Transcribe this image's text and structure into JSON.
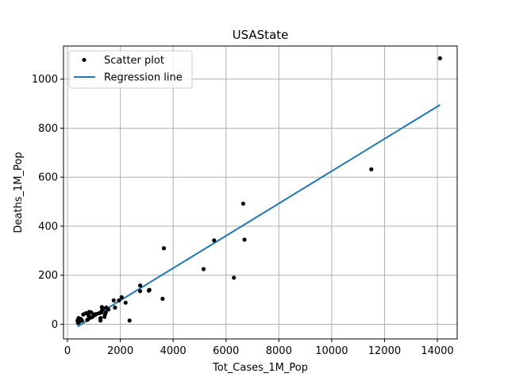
{
  "chart_data": {
    "type": "scatter",
    "title": "USAState",
    "xlabel": "Tot_Cases_1M_Pop",
    "ylabel": "Deaths_1M_Pop",
    "xlim": [
      -150,
      14750
    ],
    "ylim": [
      -60,
      1135
    ],
    "xticks": [
      0,
      2000,
      4000,
      6000,
      8000,
      10000,
      12000,
      14000
    ],
    "yticks": [
      0,
      200,
      400,
      600,
      800,
      1000
    ],
    "grid": true,
    "legend_position": "top-left",
    "series": [
      {
        "name": "Scatter plot",
        "kind": "scatter",
        "color": "#000000",
        "points": [
          [
            14100,
            1085
          ],
          [
            11500,
            632
          ],
          [
            6650,
            492
          ],
          [
            6700,
            345
          ],
          [
            5550,
            342
          ],
          [
            6300,
            190
          ],
          [
            5150,
            225
          ],
          [
            3650,
            310
          ],
          [
            3600,
            104
          ],
          [
            3100,
            140
          ],
          [
            3080,
            137
          ],
          [
            2750,
            158
          ],
          [
            2750,
            135
          ],
          [
            2350,
            15
          ],
          [
            2200,
            88
          ],
          [
            2050,
            110
          ],
          [
            1950,
            97
          ],
          [
            1750,
            97
          ],
          [
            1800,
            68
          ],
          [
            1470,
            68
          ],
          [
            1450,
            48
          ],
          [
            1420,
            40
          ],
          [
            1400,
            30
          ],
          [
            1350,
            65
          ],
          [
            1300,
            70
          ],
          [
            1300,
            55
          ],
          [
            1280,
            48
          ],
          [
            1250,
            25
          ],
          [
            1250,
            15
          ],
          [
            1200,
            45
          ],
          [
            1100,
            42
          ],
          [
            1050,
            38
          ],
          [
            1000,
            40
          ],
          [
            950,
            30
          ],
          [
            900,
            48
          ],
          [
            870,
            27
          ],
          [
            820,
            50
          ],
          [
            800,
            35
          ],
          [
            780,
            20
          ],
          [
            750,
            18
          ],
          [
            700,
            45
          ],
          [
            600,
            40
          ],
          [
            550,
            15
          ],
          [
            500,
            22
          ],
          [
            450,
            10
          ],
          [
            420,
            18
          ],
          [
            400,
            5
          ],
          [
            420,
            25
          ],
          [
            380,
            15
          ],
          [
            1550,
            60
          ]
        ]
      },
      {
        "name": "Regression line",
        "kind": "line",
        "color": "#1f77b4",
        "x": [
          380,
          14100
        ],
        "y": [
          -10,
          895
        ]
      }
    ]
  }
}
